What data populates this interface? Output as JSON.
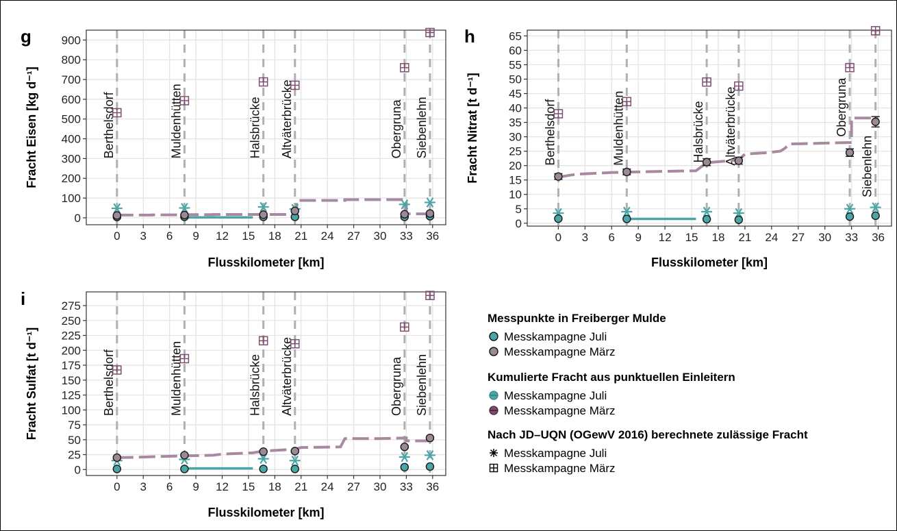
{
  "colors": {
    "teal": "#4aa6a6",
    "teal_dark": "#2f8a8a",
    "purple": "#7d4e71",
    "purple_light": "#a88aa0",
    "gray_point": "#9b8a95",
    "grid": "#e4e4e4",
    "vline": "#b0b0b0"
  },
  "legend": {
    "group1_title": "Messpunkte in Freiberger Mulde",
    "group1_items": [
      "Messkampagne Juli",
      "Messkampagne März"
    ],
    "group2_title": "Kumulierte Fracht aus punktuellen Einleitern",
    "group2_items": [
      "Messkampagne Juli",
      "Messkampagne März"
    ],
    "group3_title": "Nach JD–UQN (OGewV 2016) berechnete zulässige Fracht",
    "group3_items": [
      "Messkampagne Juli",
      "Messkampagne März"
    ]
  },
  "chart_data": [
    {
      "type": "scatter",
      "panel_label": "g",
      "xlabel": "Flusskilometer [km]",
      "ylabel": "Fracht Eisen [kg d⁻¹]",
      "xlim": [
        -3.5,
        37.5
      ],
      "ylim": [
        -35,
        950
      ],
      "xticks": [
        0,
        3,
        6,
        9,
        12,
        15,
        18,
        21,
        24,
        27,
        30,
        33,
        36
      ],
      "yticks": [
        0,
        100,
        200,
        300,
        400,
        500,
        600,
        700,
        800,
        900
      ],
      "stations": [
        {
          "name": "Berthelsdorf",
          "km": 0,
          "label_y": 300
        },
        {
          "name": "Muldenhütten",
          "km": 7.7,
          "label_y": 300
        },
        {
          "name": "Halsbrücke",
          "km": 16.7,
          "label_y": 300
        },
        {
          "name": "Altväterbrücke",
          "km": 20.3,
          "label_y": 300
        },
        {
          "name": "Obergruna",
          "km": 32.8,
          "label_y": 300
        },
        {
          "name": "Siebenlehn",
          "km": 35.7,
          "label_y": 300
        }
      ],
      "purple_steps": [
        [
          0,
          14
        ],
        [
          4,
          14
        ],
        [
          4,
          15
        ],
        [
          8,
          15
        ],
        [
          8,
          16
        ],
        [
          11,
          16
        ],
        [
          11,
          17
        ],
        [
          15.5,
          17
        ],
        [
          15.5,
          17
        ],
        [
          20.5,
          17
        ],
        [
          20.5,
          88
        ],
        [
          26,
          88
        ],
        [
          26,
          92
        ],
        [
          33,
          92
        ],
        [
          33,
          20
        ],
        [
          36,
          20
        ]
      ],
      "teal_steps": [
        [
          7.7,
          2
        ],
        [
          15.5,
          2
        ]
      ],
      "july_measure": [
        {
          "km": 0,
          "y": 4
        },
        {
          "km": 7.7,
          "y": 5
        },
        {
          "km": 16.7,
          "y": 5
        },
        {
          "km": 20.3,
          "y": 5
        },
        {
          "km": 32.8,
          "y": 5
        },
        {
          "km": 35.7,
          "y": 8
        }
      ],
      "march_measure": [
        {
          "km": 0,
          "y": 12,
          "err": 3
        },
        {
          "km": 7.7,
          "y": 14,
          "err": 3
        },
        {
          "km": 16.7,
          "y": 16,
          "err": 3
        },
        {
          "km": 20.3,
          "y": 35,
          "err": 3
        },
        {
          "km": 32.8,
          "y": 18,
          "err": 3
        },
        {
          "km": 35.7,
          "y": 22,
          "err": 3
        }
      ],
      "july_limit": [
        {
          "km": 0,
          "y": 48
        },
        {
          "km": 7.7,
          "y": 50
        },
        {
          "km": 16.7,
          "y": 55
        },
        {
          "km": 20.3,
          "y": 45
        },
        {
          "km": 32.8,
          "y": 68
        },
        {
          "km": 35.7,
          "y": 78
        }
      ],
      "march_limit": [
        {
          "km": 0,
          "y": 532
        },
        {
          "km": 7.7,
          "y": 593
        },
        {
          "km": 16.7,
          "y": 688
        },
        {
          "km": 20.3,
          "y": 671
        },
        {
          "km": 32.8,
          "y": 760
        },
        {
          "km": 35.7,
          "y": 938
        }
      ]
    },
    {
      "type": "scatter",
      "panel_label": "h",
      "xlabel": "Flusskilometer [km]",
      "ylabel": "Fracht Nitrat [t d⁻¹]",
      "xlim": [
        -3.5,
        37.5
      ],
      "ylim": [
        -1,
        67
      ],
      "xticks": [
        0,
        3,
        6,
        9,
        12,
        15,
        18,
        21,
        24,
        27,
        30,
        33,
        36
      ],
      "yticks": [
        0,
        5,
        10,
        15,
        20,
        25,
        30,
        35,
        40,
        45,
        50,
        55,
        60,
        65
      ],
      "stations": [
        {
          "name": "Berthelsdorf",
          "km": 0,
          "label_y": 20
        },
        {
          "name": "Muldenhütten",
          "km": 7.7,
          "label_y": 20
        },
        {
          "name": "Halsbrücke",
          "km": 16.7,
          "label_y": 21
        },
        {
          "name": "Altväterbrücke",
          "km": 20.3,
          "label_y": 20
        },
        {
          "name": "Obergruna",
          "km": 32.8,
          "label_y": 30
        },
        {
          "name": "Siebenlehn",
          "km": 35.7,
          "label_y": 9
        }
      ],
      "purple_steps": [
        [
          0,
          16
        ],
        [
          2,
          17
        ],
        [
          6,
          17.6
        ],
        [
          9,
          17.8
        ],
        [
          12,
          18
        ],
        [
          15.5,
          18.2
        ],
        [
          16.7,
          21
        ],
        [
          20.3,
          22
        ],
        [
          21,
          24
        ],
        [
          23.5,
          24.5
        ],
        [
          25,
          25
        ],
        [
          25.5,
          26
        ],
        [
          26,
          27.5
        ],
        [
          27.5,
          27.6
        ],
        [
          30,
          27.8
        ],
        [
          33,
          28
        ],
        [
          33,
          36.5
        ],
        [
          36,
          36.5
        ]
      ],
      "teal_steps": [
        [
          7.7,
          1.5
        ],
        [
          15.5,
          1.5
        ]
      ],
      "july_measure": [
        {
          "km": 0,
          "y": 1.6
        },
        {
          "km": 7.7,
          "y": 1.5
        },
        {
          "km": 16.7,
          "y": 1.4
        },
        {
          "km": 20.3,
          "y": 1.2
        },
        {
          "km": 32.8,
          "y": 2.3
        },
        {
          "km": 35.7,
          "y": 2.6
        }
      ],
      "march_measure": [
        {
          "km": 0,
          "y": 16.2,
          "err": 1
        },
        {
          "km": 7.7,
          "y": 17.8,
          "err": 1
        },
        {
          "km": 16.7,
          "y": 21.2,
          "err": 1.2
        },
        {
          "km": 20.3,
          "y": 21.7,
          "err": 1.2
        },
        {
          "km": 32.8,
          "y": 24.5,
          "err": 1.3
        },
        {
          "km": 35.7,
          "y": 35.2,
          "err": 1.8
        }
      ],
      "july_limit": [
        {
          "km": 0,
          "y": 3.5
        },
        {
          "km": 7.7,
          "y": 4
        },
        {
          "km": 16.7,
          "y": 4
        },
        {
          "km": 20.3,
          "y": 3.5
        },
        {
          "km": 32.8,
          "y": 5
        },
        {
          "km": 35.7,
          "y": 5.5
        }
      ],
      "march_limit": [
        {
          "km": 0,
          "y": 38
        },
        {
          "km": 7.7,
          "y": 42.2
        },
        {
          "km": 16.7,
          "y": 49
        },
        {
          "km": 20.3,
          "y": 47.6
        },
        {
          "km": 32.8,
          "y": 54
        },
        {
          "km": 35.7,
          "y": 66.8
        }
      ]
    },
    {
      "type": "scatter",
      "panel_label": "i",
      "xlabel": "Flusskilometer [km]",
      "ylabel": "Fracht Sulfat [t d⁻¹]",
      "xlim": [
        -3.5,
        37.5
      ],
      "ylim": [
        -10,
        298
      ],
      "xticks": [
        0,
        3,
        6,
        9,
        12,
        15,
        18,
        21,
        24,
        27,
        30,
        33,
        36
      ],
      "yticks": [
        0,
        25,
        50,
        75,
        100,
        125,
        150,
        175,
        200,
        225,
        250,
        275
      ],
      "stations": [
        {
          "name": "Berthelsdorf",
          "km": 0,
          "label_y": 90
        },
        {
          "name": "Muldenhütten",
          "km": 7.7,
          "label_y": 90
        },
        {
          "name": "Halsbrücke",
          "km": 16.7,
          "label_y": 90
        },
        {
          "name": "Altväterbrücke",
          "km": 20.3,
          "label_y": 90
        },
        {
          "name": "Obergruna",
          "km": 32.8,
          "label_y": 90
        },
        {
          "name": "Siebenlehn",
          "km": 35.7,
          "label_y": 90
        }
      ],
      "purple_steps": [
        [
          0,
          20
        ],
        [
          2,
          20.5
        ],
        [
          5,
          22
        ],
        [
          8,
          23
        ],
        [
          11,
          24
        ],
        [
          12,
          26
        ],
        [
          15.5,
          28
        ],
        [
          16.7,
          31
        ],
        [
          20.3,
          34
        ],
        [
          21,
          37
        ],
        [
          25.5,
          38
        ],
        [
          26,
          52
        ],
        [
          30,
          52
        ],
        [
          33,
          53
        ],
        [
          33,
          48
        ],
        [
          36,
          48
        ]
      ],
      "teal_steps": [
        [
          7.7,
          2
        ],
        [
          15.5,
          2
        ]
      ],
      "july_measure": [
        {
          "km": 0,
          "y": 1
        },
        {
          "km": 7.7,
          "y": 1
        },
        {
          "km": 16.7,
          "y": 1
        },
        {
          "km": 20.3,
          "y": 1
        },
        {
          "km": 32.8,
          "y": 4
        },
        {
          "km": 35.7,
          "y": 5
        }
      ],
      "march_measure": [
        {
          "km": 0,
          "y": 20,
          "err": 1.5
        },
        {
          "km": 7.7,
          "y": 24,
          "err": 1.5
        },
        {
          "km": 16.7,
          "y": 30,
          "err": 1.5
        },
        {
          "km": 20.3,
          "y": 31,
          "err": 1.5
        },
        {
          "km": 32.8,
          "y": 38,
          "err": 2
        },
        {
          "km": 35.7,
          "y": 53,
          "err": 2
        }
      ],
      "july_limit": [
        {
          "km": 0,
          "y": 15
        },
        {
          "km": 7.7,
          "y": 17
        },
        {
          "km": 16.7,
          "y": 18
        },
        {
          "km": 20.3,
          "y": 15
        },
        {
          "km": 32.8,
          "y": 21
        },
        {
          "km": 35.7,
          "y": 24
        }
      ],
      "march_limit": [
        {
          "km": 0,
          "y": 167
        },
        {
          "km": 7.7,
          "y": 186
        },
        {
          "km": 16.7,
          "y": 216
        },
        {
          "km": 20.3,
          "y": 211
        },
        {
          "km": 32.8,
          "y": 239
        },
        {
          "km": 35.7,
          "y": 292
        }
      ]
    }
  ]
}
